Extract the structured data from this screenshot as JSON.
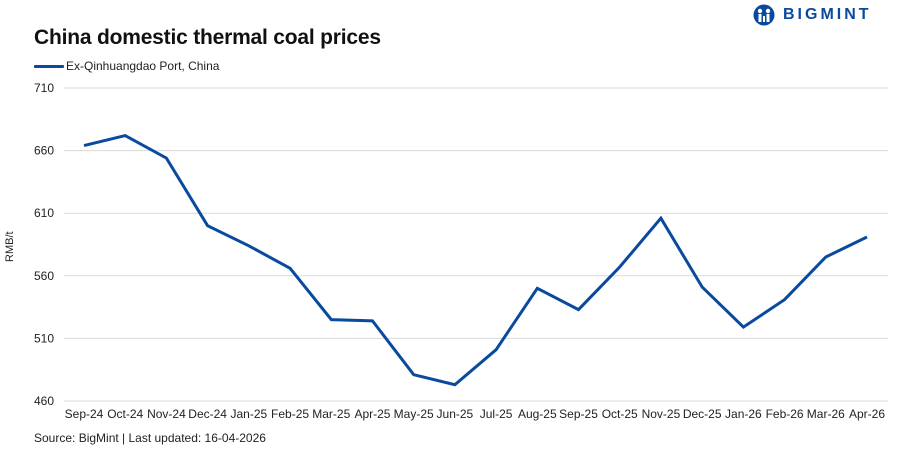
{
  "title": "China domestic thermal coal prices",
  "logo": {
    "text": "BIGMINT",
    "color": "#0a4a9e"
  },
  "legend": {
    "label": "Ex-Qinhuangdao Port, China",
    "color": "#0a4a9e"
  },
  "ylabel": "RMB/t",
  "source": "Source: BigMint | Last updated: 16-04-2026",
  "chart_data": {
    "type": "line",
    "title": "China domestic thermal coal prices",
    "xlabel": "",
    "ylabel": "RMB/t",
    "ylim": [
      460,
      710
    ],
    "yticks": [
      460,
      510,
      560,
      610,
      660,
      710
    ],
    "grid": true,
    "legend_position": "top-left",
    "categories": [
      "Sep-24",
      "Oct-24",
      "Nov-24",
      "Dec-24",
      "Jan-25",
      "Feb-25",
      "Mar-25",
      "Apr-25",
      "May-25",
      "Jun-25",
      "Jul-25",
      "Aug-25",
      "Sep-25",
      "Oct-25",
      "Nov-25",
      "Dec-25",
      "Jan-26",
      "Feb-26",
      "Mar-26",
      "Apr-26"
    ],
    "series": [
      {
        "name": "Ex-Qinhuangdao Port, China",
        "color": "#0a4a9e",
        "values": [
          664,
          672,
          654,
          600,
          584,
          566,
          525,
          524,
          481,
          473,
          501,
          550,
          533,
          567,
          606,
          551,
          519,
          541,
          575,
          591
        ]
      }
    ]
  }
}
